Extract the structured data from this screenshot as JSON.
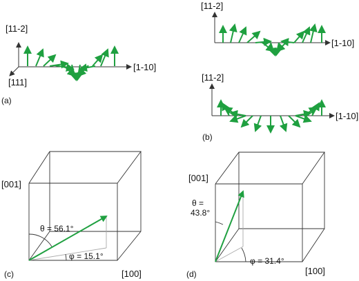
{
  "colors": {
    "arrow": "#1fa040",
    "axis": "#333333",
    "cube": "#333333",
    "projection": "#aaaaaa"
  },
  "panel_a": {
    "label": "(a)",
    "axis_vertical": "[11-2]",
    "axis_horizontal": "[1-10]",
    "axis_depth": "[111]"
  },
  "panel_b": {
    "label": "(b)",
    "top": {
      "axis_vertical": "[11-2]",
      "axis_horizontal": "[1-10]"
    },
    "bottom": {
      "axis_vertical": "[11-2]",
      "axis_horizontal": "[1-10]"
    }
  },
  "panel_c": {
    "label": "(c)",
    "axis_vertical": "[001]",
    "axis_horizontal": "[100]",
    "theta": "θ = 56.1°",
    "phi": "φ = 15.1°"
  },
  "panel_d": {
    "label": "(d)",
    "axis_vertical": "[001]",
    "axis_horizontal": "[100]",
    "theta_line1": "θ =",
    "theta_line2": "43.8°",
    "phi": "φ = 31.4°"
  }
}
